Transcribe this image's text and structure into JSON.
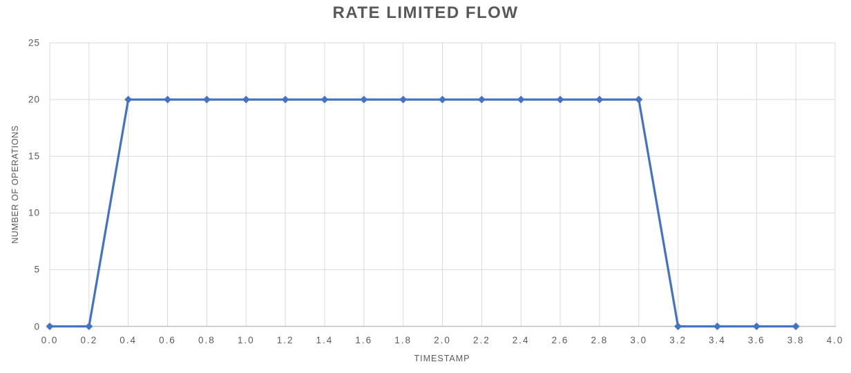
{
  "chart_data": {
    "type": "line",
    "title": "RATE LIMITED FLOW",
    "xlabel": "TIMESTAMP",
    "ylabel": "NUMBER OF OPERATIONS",
    "x": [
      0.0,
      0.2,
      0.4,
      0.6,
      0.8,
      1.0,
      1.2,
      1.4,
      1.6,
      1.8,
      2.0,
      2.2,
      2.4,
      2.6,
      2.8,
      3.0,
      3.2,
      3.4,
      3.6,
      3.8
    ],
    "values": [
      0,
      0,
      20,
      20,
      20,
      20,
      20,
      20,
      20,
      20,
      20,
      20,
      20,
      20,
      20,
      20,
      0,
      0,
      0,
      0
    ],
    "xlim": [
      0.0,
      4.0
    ],
    "ylim": [
      0,
      25
    ],
    "x_ticks": [
      "0.0",
      "0.2",
      "0.4",
      "0.6",
      "0.8",
      "1.0",
      "1.2",
      "1.4",
      "1.6",
      "1.8",
      "2.0",
      "2.2",
      "2.4",
      "2.6",
      "2.8",
      "3.0",
      "3.2",
      "3.4",
      "3.6",
      "3.8",
      "4.0"
    ],
    "y_ticks": [
      0,
      5,
      10,
      15,
      20,
      25
    ],
    "grid": true,
    "legend": false,
    "marker": "diamond",
    "colors": {
      "series": "#4472C4",
      "gridline": "#D9D9D9",
      "axis_line": "#BFBFBF",
      "text": "#595959"
    }
  }
}
